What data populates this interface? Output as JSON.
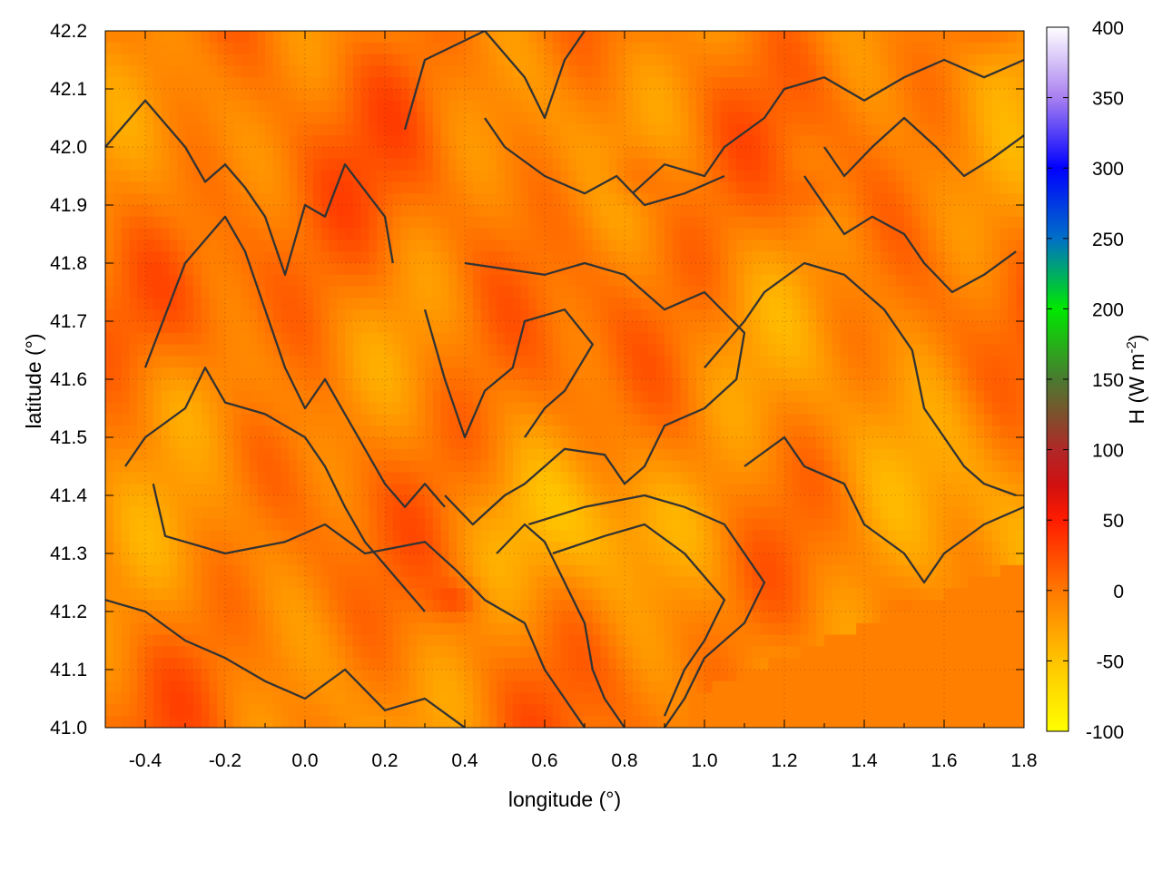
{
  "chart_data": {
    "type": "heatmap",
    "title": "",
    "xlabel": "longitude (°)",
    "ylabel": "latitude (°)",
    "xlim": [
      -0.5,
      1.8
    ],
    "ylim": [
      41.0,
      42.2
    ],
    "x_ticks": [
      "-0.4",
      "-0.2",
      "0.0",
      "0.2",
      "0.4",
      "0.6",
      "0.8",
      "1.0",
      "1.2",
      "1.4",
      "1.6",
      "1.8"
    ],
    "x_tick_values": [
      -0.4,
      -0.2,
      0.0,
      0.2,
      0.4,
      0.6,
      0.8,
      1.0,
      1.2,
      1.4,
      1.6,
      1.8
    ],
    "y_ticks": [
      "41.0",
      "41.1",
      "41.2",
      "41.3",
      "41.4",
      "41.5",
      "41.6",
      "41.7",
      "41.8",
      "41.9",
      "42.0",
      "42.1",
      "42.2"
    ],
    "y_tick_values": [
      41.0,
      41.1,
      41.2,
      41.3,
      41.4,
      41.5,
      41.6,
      41.7,
      41.8,
      41.9,
      42.0,
      42.1,
      42.2
    ],
    "grid": true,
    "colorbar": {
      "label": "H (W m-2)",
      "label_main": "H (W m",
      "label_sup": "-2",
      "label_close": ")",
      "range": [
        -100,
        400
      ],
      "ticks": [
        "-100",
        "-50",
        "0",
        "50",
        "100",
        "150",
        "200",
        "250",
        "300",
        "350",
        "400"
      ],
      "tick_values": [
        -100,
        -50,
        0,
        50,
        100,
        150,
        200,
        250,
        300,
        350,
        400
      ],
      "palette": [
        {
          "value": -100,
          "color": "#ffff00"
        },
        {
          "value": -50,
          "color": "#ffc400"
        },
        {
          "value": 0,
          "color": "#ff7800"
        },
        {
          "value": 50,
          "color": "#ff1c00"
        },
        {
          "value": 75,
          "color": "#d01010"
        },
        {
          "value": 100,
          "color": "#b02828"
        },
        {
          "value": 150,
          "color": "#4a7a30"
        },
        {
          "value": 200,
          "color": "#00e800"
        },
        {
          "value": 250,
          "color": "#0070c8"
        },
        {
          "value": 300,
          "color": "#0000ff"
        },
        {
          "value": 350,
          "color": "#a880f0"
        },
        {
          "value": 400,
          "color": "#ffffff"
        }
      ]
    },
    "field_description_values": {
      "dominant_range": [
        -40,
        30
      ],
      "sea_region_value": -5,
      "max_value_approx": 60,
      "min_value_approx": -95
    },
    "contour_color": "#333333"
  }
}
